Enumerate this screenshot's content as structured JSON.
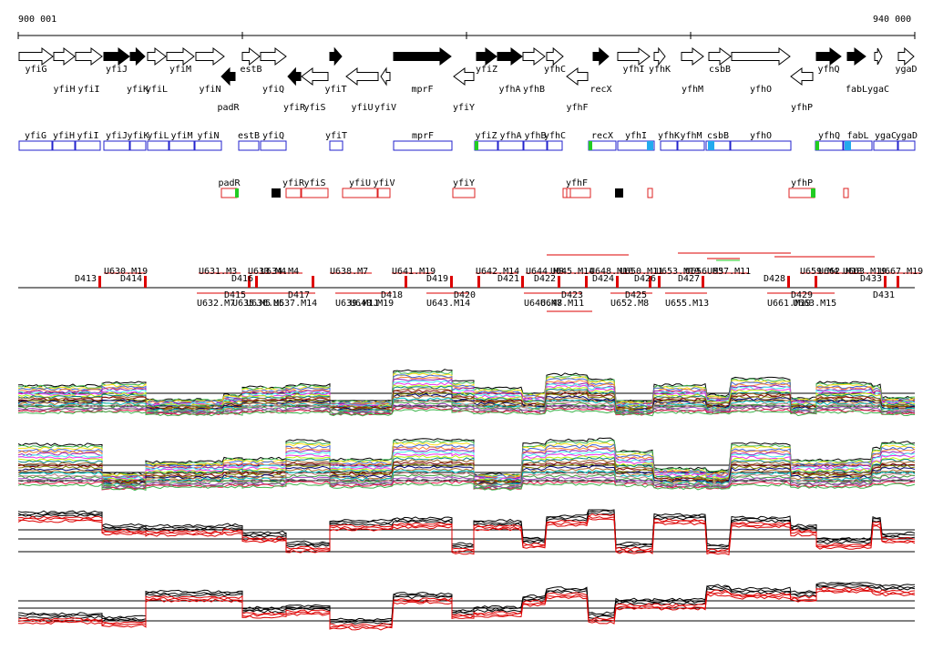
{
  "coord": {
    "start_label": "900 001",
    "end_label": "940 000",
    "start": 900001,
    "end": 940000
  },
  "colors": {
    "strand_fill": "#000000",
    "gene_outline": "#2222cc",
    "utr_outline": "#dd2222",
    "start_green": "#22cc22",
    "tss_mark": "#dd0000",
    "profile_black": "#000000",
    "profile_red": "#dd0000"
  },
  "genes_plus": [
    {
      "name": "yfiG",
      "row": "top"
    },
    {
      "name": "yfiH",
      "row": "bottom"
    },
    {
      "name": "yfiI",
      "row": "bottom"
    },
    {
      "name": "yfiJ",
      "row": "top"
    },
    {
      "name": "yfiK",
      "row": "bottom"
    },
    {
      "name": "yfiL",
      "row": "bottom"
    },
    {
      "name": "yfiM",
      "row": "top"
    },
    {
      "name": "yfiN",
      "row": "bottom"
    },
    {
      "name": "estB",
      "row": "top"
    },
    {
      "name": "yfiQ",
      "row": "bottom"
    },
    {
      "name": "yfiT",
      "row": "bottom"
    },
    {
      "name": "mprF",
      "row": "bottom"
    },
    {
      "name": "yfiZ",
      "row": "top"
    },
    {
      "name": "yfhA",
      "row": "bottom"
    },
    {
      "name": "yfhB",
      "row": "bottom"
    },
    {
      "name": "yfhC",
      "row": "top"
    },
    {
      "name": "recX",
      "row": "bottom"
    },
    {
      "name": "yfhI",
      "row": "top"
    },
    {
      "name": "yfhK",
      "row": "top"
    },
    {
      "name": "yfhM",
      "row": "bottom"
    },
    {
      "name": "csbB",
      "row": "top"
    },
    {
      "name": "yfhO",
      "row": "bottom"
    },
    {
      "name": "yfhQ",
      "row": "top"
    },
    {
      "name": "fabL",
      "row": "bottom"
    },
    {
      "name": "ygaC",
      "row": "bottom"
    },
    {
      "name": "ygaD",
      "row": "top"
    }
  ],
  "genes_minus": [
    {
      "name": "padR"
    },
    {
      "name": "yfiR"
    },
    {
      "name": "yfiS"
    },
    {
      "name": "yfiU"
    },
    {
      "name": "yfiV"
    },
    {
      "name": "yfiY"
    },
    {
      "name": "yfhF"
    },
    {
      "name": "yfhP"
    }
  ],
  "track_plus": [
    "yfiG",
    "yfiH",
    "yfiI",
    "yfiJ",
    "yfiK",
    "yfiL",
    "yfiM",
    "yfiN",
    "estB",
    "yfiQ",
    "yfiT",
    "mprF",
    "yfiZ",
    "yfhA",
    "yfhB",
    "yfhC",
    "recX",
    "yfhI",
    "yfhK",
    "yfhM",
    "csbB",
    "yfhO",
    "yfhQ",
    "fabL",
    "ygaC",
    "ygaD"
  ],
  "track_minus": [
    "padR",
    "yfiR",
    "yfiS",
    "yfiU",
    "yfiV",
    "yfiY",
    "yfhF",
    "yfhP"
  ],
  "segments_top": [
    {
      "label": "U630.M19"
    },
    {
      "label": "U631.M3"
    },
    {
      "label": "U633.M4"
    },
    {
      "label": "U634.M4"
    },
    {
      "label": "U638.M7"
    },
    {
      "label": "U641.M19"
    },
    {
      "label": "U642.M14"
    },
    {
      "label": "U644.M8"
    },
    {
      "label": "U645.M14"
    },
    {
      "label": "U648.M16"
    },
    {
      "label": "U650.M11"
    },
    {
      "label": "U653.M19"
    },
    {
      "label": "U656.M3"
    },
    {
      "label": "U657.M11"
    },
    {
      "label": "U659.M4"
    },
    {
      "label": "U662.M18"
    },
    {
      "label": "U663.M19"
    },
    {
      "label": "U667.M19"
    }
  ],
  "segments_bottom": [
    {
      "label": "U632.M7"
    },
    {
      "label": "U635.M5"
    },
    {
      "label": "U636.M5"
    },
    {
      "label": "U637.M14"
    },
    {
      "label": "U639.M11"
    },
    {
      "label": "U640.M19"
    },
    {
      "label": "U643.M14"
    },
    {
      "label": "U646.M8"
    },
    {
      "label": "U647.M11"
    },
    {
      "label": "U652.M8"
    },
    {
      "label": "U655.M13"
    },
    {
      "label": "U661.M19"
    },
    {
      "label": "U663.M15"
    }
  ],
  "down_labels": [
    {
      "label": "D413"
    },
    {
      "label": "D414"
    },
    {
      "label": "D415"
    },
    {
      "label": "D416"
    },
    {
      "label": "D417"
    },
    {
      "label": "D418"
    },
    {
      "label": "D419"
    },
    {
      "label": "D420"
    },
    {
      "label": "D421"
    },
    {
      "label": "D422"
    },
    {
      "label": "D423"
    },
    {
      "label": "D424"
    },
    {
      "label": "D425"
    },
    {
      "label": "D426"
    },
    {
      "label": "D427"
    },
    {
      "label": "D428"
    },
    {
      "label": "D429"
    },
    {
      "label": "D431"
    },
    {
      "label": "D433"
    }
  ],
  "profiles": [
    {
      "kind": "multi"
    },
    {
      "kind": "multi"
    },
    {
      "kind": "pair"
    },
    {
      "kind": "pair"
    }
  ]
}
